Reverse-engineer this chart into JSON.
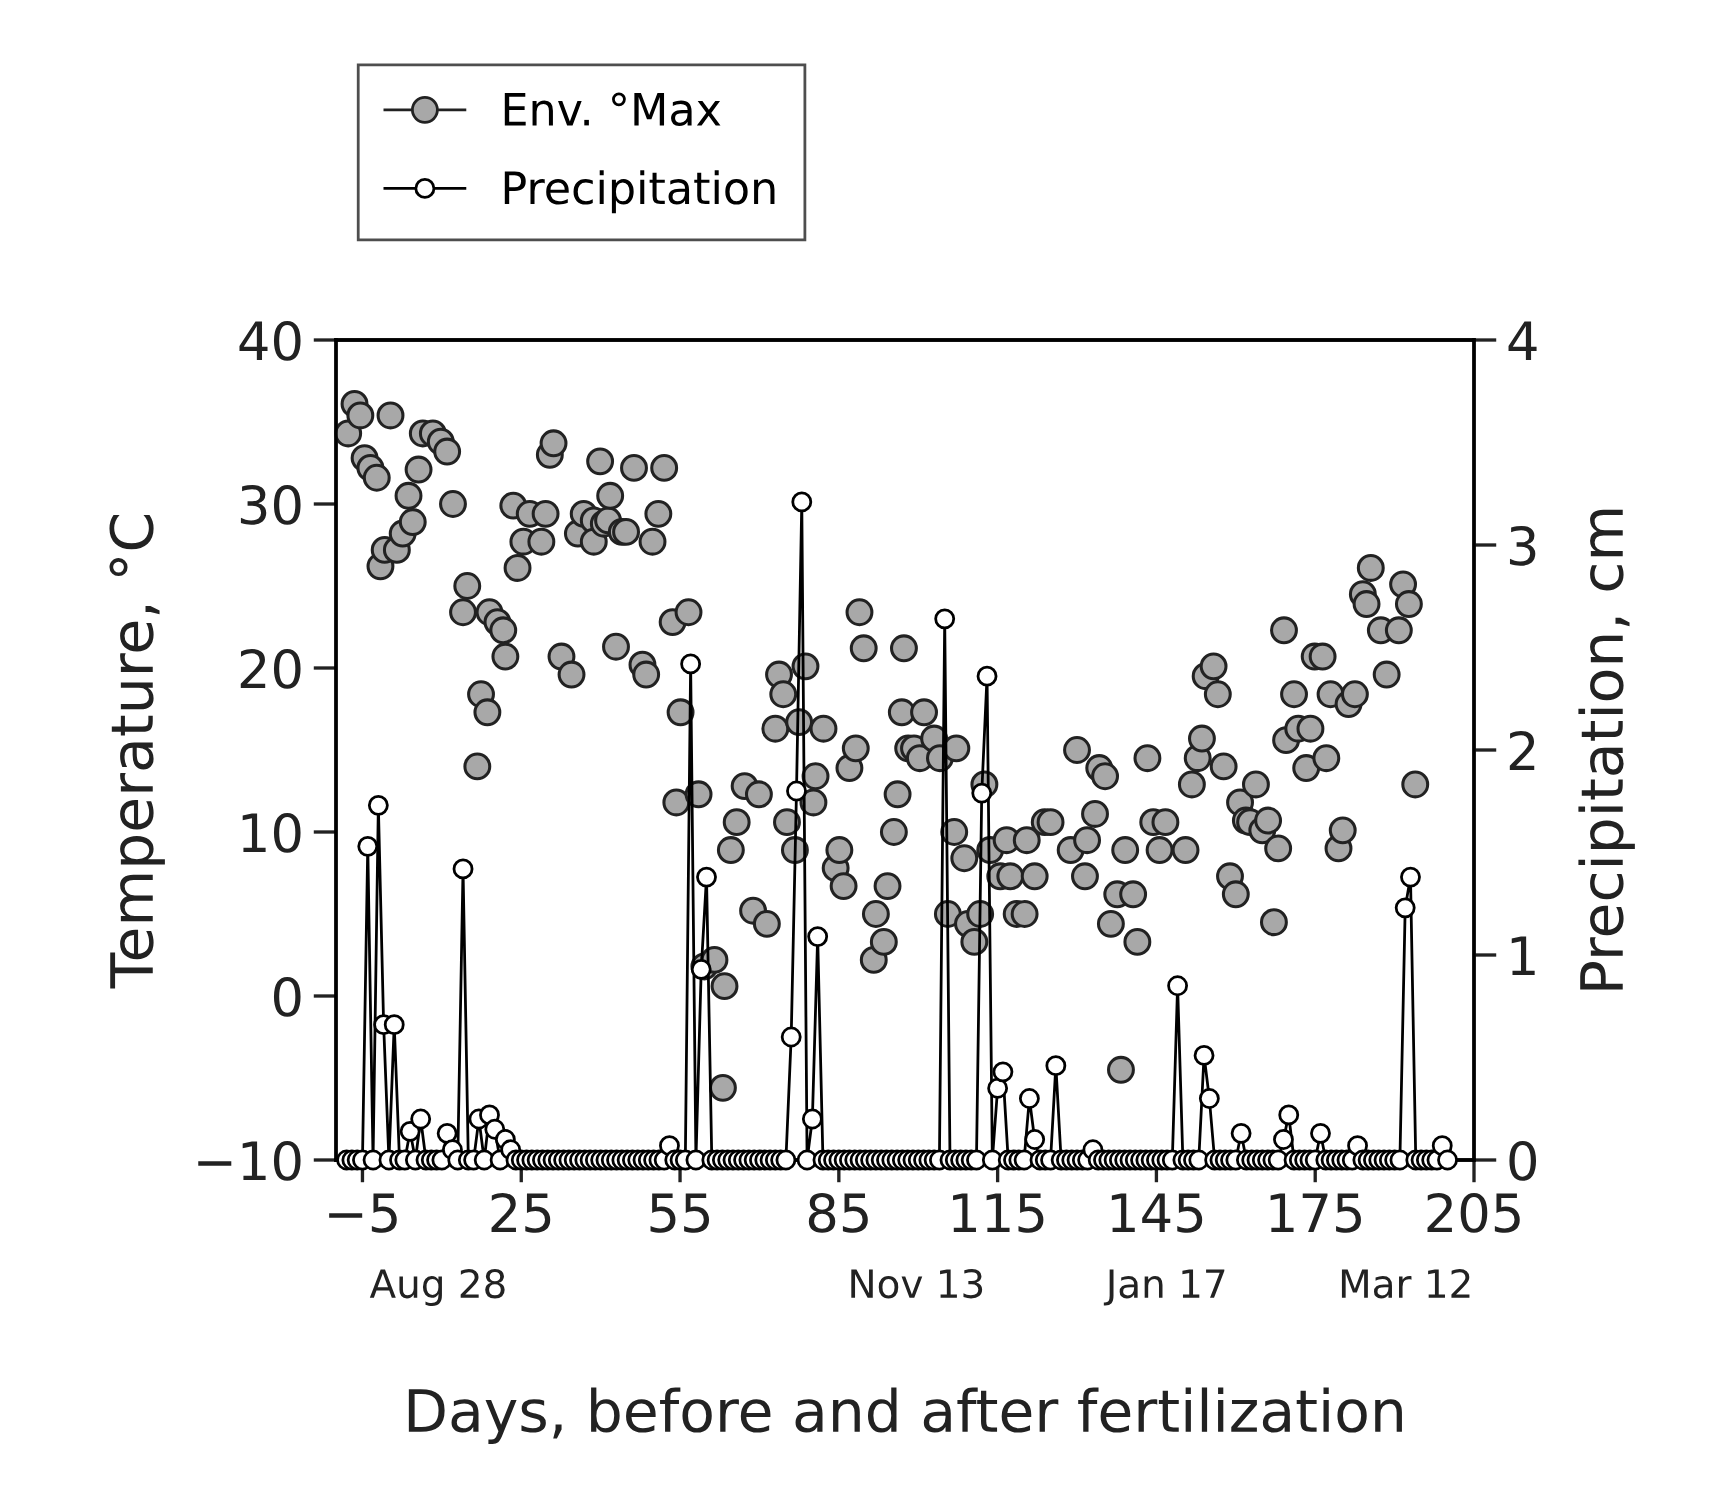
{
  "chart_data": {
    "type": "line",
    "xlabel": "Days, before and after fertilization",
    "ylabel": "Temperature, °C",
    "y2label": "Precipitation, cm",
    "xlim": [
      -10,
      205
    ],
    "xticks": [
      {
        "value": -5,
        "label": "−5"
      },
      25,
      55,
      85,
      115,
      145,
      175,
      205
    ],
    "ylim": [
      -10,
      40
    ],
    "yticks": [
      {
        "value": -10,
        "label": "−10"
      },
      0,
      10,
      20,
      30,
      40
    ],
    "y2lim": [
      0,
      4
    ],
    "y2ticks": [
      0,
      1,
      2,
      3,
      4
    ],
    "annotations": [
      "Aug 28",
      "Nov 13",
      "Jan 17",
      "Mar 12"
    ],
    "legend": "top left",
    "series": [
      {
        "name": "Env. °Max",
        "type": "scatter",
        "color": "#a8a8a8",
        "marker": "circle",
        "x": [
          -7.7,
          -6.5,
          -5.4,
          -4.6,
          -3.5,
          -2.3,
          -1.6,
          -0.8,
          0.3,
          1.5,
          2.6,
          3.7,
          4.5,
          5.6,
          6.4,
          8.3,
          9.8,
          11,
          12.1,
          14.0,
          14.8,
          16.7,
          17.4,
          18.6,
          19,
          20.5,
          21.6,
          22.0,
          23.5,
          24.3,
          25.4,
          26.6,
          28.8,
          29.6,
          30.4,
          31.1,
          32.6,
          34.5,
          35.7,
          36.8,
          38.7,
          38.7,
          39.9,
          40.6,
          41.4,
          41.8,
          42.9,
          44.0,
          44.8,
          46.3,
          47.9,
          48.6,
          49.8,
          50.9,
          52.0,
          53.6,
          54.3,
          55.1,
          56.6,
          58.5,
          59.6,
          61.5,
          63.1,
          63.4,
          64.6,
          65.7,
          67.2,
          68.8,
          69.9,
          71.4,
          73.0,
          73.7,
          74.5,
          75.2,
          76.7,
          77.5,
          78.7,
          80.2,
          80.6,
          82.1,
          84.4,
          85.1,
          85.9,
          87.0,
          88.2,
          88.9,
          89.7,
          91.6,
          92.0,
          93.5,
          94.2,
          95.4,
          96.1,
          96.9,
          97.3,
          98.1,
          99.2,
          100.3,
          101.1,
          103.0,
          104.1,
          105.6,
          106.8,
          107.2,
          108.7,
          109.4,
          110.6,
          111.7,
          112.5,
          113.6,
          115.5,
          116.7,
          117.4,
          118.6,
          120.1,
          120.5,
          122.0,
          123.9,
          125.0,
          128.8,
          130.0,
          131.5,
          131.9,
          133.4,
          134.2,
          135.3,
          136.4,
          137.6,
          138.3,
          139.1,
          140.6,
          141.4,
          143.3,
          144.4,
          145.6,
          146.7,
          150.5,
          151.7,
          152.8,
          153.6,
          154.3,
          155.8,
          156.6,
          157.7,
          158.9,
          160.0,
          160.8,
          161.9,
          162.7,
          163.8,
          165.0,
          166.1,
          167.2,
          168.0,
          169.1,
          169.5,
          171.0,
          171.8,
          173.3,
          174.1,
          174.9,
          176.4,
          177.1,
          177.9,
          179.4,
          180.2,
          181.3,
          182.5,
          184.0,
          184.7,
          185.5,
          187.4,
          188.5,
          190.8,
          191.6,
          192.7,
          193.9
        ],
        "values": [
          34.3,
          36.1,
          35.4,
          32.8,
          32.2,
          31.6,
          26.2,
          27.2,
          35.4,
          27.2,
          28.2,
          30.5,
          28.9,
          32.1,
          34.3,
          34.3,
          33.8,
          33.2,
          30.0,
          23.4,
          25.0,
          14.0,
          18.4,
          17.3,
          23.4,
          22.8,
          22.3,
          20.7,
          29.9,
          26.1,
          27.7,
          29.4,
          27.7,
          29.4,
          33.0,
          33.7,
          20.7,
          19.6,
          28.2,
          29.4,
          29.0,
          27.7,
          32.6,
          28.8,
          29.0,
          30.5,
          21.3,
          28.3,
          28.3,
          32.2,
          20.2,
          19.6,
          27.7,
          29.4,
          32.2,
          22.8,
          11.8,
          17.3,
          23.4,
          12.3,
          1.8,
          2.2,
          -5.6,
          0.6,
          8.9,
          10.6,
          12.8,
          5.2,
          12.3,
          4.4,
          16.3,
          19.6,
          18.4,
          10.6,
          8.9,
          16.7,
          20.1,
          11.8,
          13.4,
          16.3,
          7.8,
          8.9,
          6.7,
          13.9,
          15.1,
          23.4,
          21.2,
          2.2,
          5.0,
          3.3,
          6.7,
          10.0,
          12.3,
          17.3,
          21.2,
          15.1,
          15.1,
          14.5,
          17.3,
          15.7,
          14.5,
          5.0,
          10.0,
          15.1,
          8.4,
          4.4,
          3.3,
          5.0,
          12.9,
          8.9,
          7.3,
          9.5,
          7.3,
          5.0,
          5.0,
          9.5,
          7.3,
          10.6,
          10.6,
          8.9,
          15.0,
          7.3,
          9.5,
          11.1,
          13.9,
          13.4,
          4.4,
          6.2,
          -4.5,
          8.9,
          6.2,
          3.3,
          14.5,
          10.6,
          8.9,
          10.6,
          8.9,
          12.9,
          14.5,
          15.7,
          19.5,
          20.1,
          18.4,
          14.0,
          7.3,
          6.2,
          11.8,
          10.7,
          10.6,
          12.9,
          10.1,
          10.7,
          4.5,
          9.0,
          22.3,
          15.6,
          18.4,
          16.3,
          13.9,
          16.3,
          20.7,
          20.7,
          14.5,
          18.4,
          9.0,
          10.1,
          17.8,
          18.4,
          24.5,
          23.9,
          26.1,
          22.3,
          19.6,
          22.3,
          25.1,
          23.9,
          12.9
        ]
      },
      {
        "name": "Precipitation",
        "axis": "y2",
        "color": "#000000",
        "marker": "circle",
        "line_style": "solid",
        "x": [
          -8,
          -7,
          -6,
          -5,
          -4,
          -3,
          -2,
          -1,
          0,
          1,
          2,
          3,
          4,
          5,
          6,
          7,
          8,
          9,
          10,
          11,
          12,
          13,
          14,
          15,
          16,
          17,
          18,
          19,
          20,
          21,
          22,
          23,
          24,
          25,
          26,
          27,
          28,
          29,
          30,
          31,
          32,
          33,
          34,
          35,
          36,
          37,
          38,
          39,
          40,
          41,
          42,
          43,
          44,
          45,
          46,
          47,
          48,
          49,
          50,
          51,
          52,
          53,
          54,
          55,
          56,
          57,
          58,
          59,
          60,
          61,
          62,
          63,
          64,
          65,
          66,
          67,
          68,
          69,
          70,
          71,
          72,
          73,
          74,
          75,
          76,
          77,
          78,
          79,
          80,
          81,
          82,
          83,
          84,
          85,
          86,
          87,
          88,
          89,
          90,
          91,
          92,
          93,
          94,
          95,
          96,
          97,
          98,
          99,
          100,
          101,
          102,
          103,
          104,
          105,
          106,
          107,
          108,
          109,
          110,
          111,
          112,
          113,
          114,
          115,
          116,
          117,
          118,
          119,
          120,
          121,
          122,
          123,
          124,
          125,
          126,
          127,
          128,
          129,
          130,
          131,
          132,
          133,
          134,
          135,
          136,
          137,
          138,
          139,
          140,
          141,
          142,
          143,
          144,
          145,
          146,
          147,
          148,
          149,
          150,
          151,
          152,
          153,
          154,
          155,
          156,
          157,
          158,
          159,
          160,
          161,
          162,
          163,
          164,
          165,
          166,
          167,
          168,
          169,
          170,
          171,
          172,
          173,
          174,
          175,
          176,
          177,
          178,
          179,
          180,
          181,
          182,
          183,
          184,
          185,
          186,
          187,
          188,
          189,
          190,
          191,
          192,
          193,
          194,
          195,
          196,
          197,
          198,
          199,
          200
        ],
        "values": [
          0,
          0,
          0,
          0,
          1.53,
          0,
          1.73,
          0.66,
          0,
          0.66,
          0,
          0,
          0.14,
          0,
          0.2,
          0,
          0,
          0,
          0,
          0.13,
          0.05,
          0,
          1.42,
          0,
          0,
          0.2,
          0,
          0.22,
          0.15,
          0,
          0.1,
          0.05,
          0,
          0,
          0,
          0,
          0,
          0,
          0,
          0,
          0,
          0,
          0,
          0,
          0,
          0,
          0,
          0,
          0,
          0,
          0,
          0,
          0,
          0,
          0,
          0,
          0,
          0,
          0,
          0,
          0,
          0.07,
          0,
          0,
          0,
          2.42,
          0,
          0.93,
          1.38,
          0,
          0,
          0,
          0,
          0,
          0,
          0,
          0,
          0,
          0,
          0,
          0,
          0,
          0,
          0,
          0.6,
          1.8,
          3.21,
          0,
          0.2,
          1.09,
          0,
          0,
          0,
          0,
          0,
          0,
          0,
          0,
          0,
          0,
          0,
          0,
          0,
          0,
          0,
          0,
          0,
          0,
          0,
          0,
          0,
          0,
          0,
          2.64,
          0,
          0,
          0,
          0,
          0,
          0,
          1.79,
          2.36,
          0,
          0.35,
          0.43,
          0,
          0,
          0,
          0,
          0.3,
          0.1,
          0,
          0,
          0,
          0.46,
          0,
          0,
          0,
          0,
          0,
          0,
          0.05,
          0,
          0,
          0,
          0,
          0,
          0,
          0,
          0,
          0,
          0,
          0,
          0,
          0,
          0,
          0,
          0.85,
          0,
          0,
          0,
          0,
          0.51,
          0.3,
          0,
          0,
          0,
          0,
          0,
          0.13,
          0,
          0,
          0,
          0,
          0,
          0,
          0,
          0.1,
          0.22,
          0,
          0,
          0,
          0,
          0,
          0.13,
          0,
          0,
          0,
          0,
          0,
          0,
          0.07,
          0,
          0,
          0,
          0,
          0,
          0,
          0,
          0,
          1.23,
          1.38,
          0,
          0,
          0,
          0,
          0,
          0.07,
          0
        ]
      }
    ]
  }
}
